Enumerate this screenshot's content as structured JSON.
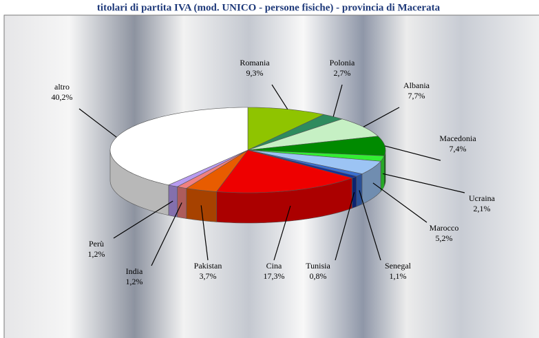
{
  "chart_data": {
    "type": "pie3d",
    "title": "titolari di partita IVA (mod. UNICO - persone fisiche) - provincia di Macerata",
    "categories": [
      "Romania",
      "Polonia",
      "Albania",
      "Macedonia",
      "Ucraina",
      "Marocco",
      "Senegal",
      "Tunisia",
      "Cina",
      "Pakistan",
      "India",
      "Perù",
      "altro"
    ],
    "values": [
      9.3,
      2.7,
      7.7,
      7.4,
      2.1,
      5.2,
      1.1,
      0.8,
      17.3,
      3.7,
      1.2,
      1.2,
      40.2
    ],
    "value_labels": [
      "9,3%",
      "2,7%",
      "7,7%",
      "7,4%",
      "2,1%",
      "5,2%",
      "1,1%",
      "0,8%",
      "17,3%",
      "3,7%",
      "1,2%",
      "1,2%",
      "40,2%"
    ],
    "colors": [
      "#8fc400",
      "#2e8b5e",
      "#c6f0c4",
      "#008a00",
      "#33ee33",
      "#9cc4f4",
      "#3a6fd0",
      "#12309a",
      "#ee0000",
      "#e85c00",
      "#f08080",
      "#b89cf0",
      "#ffffff"
    ]
  }
}
